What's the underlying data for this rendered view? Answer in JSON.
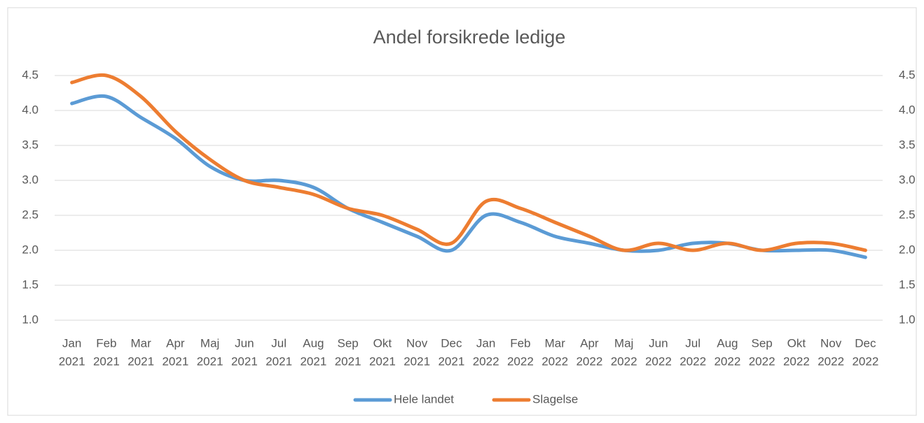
{
  "chart_data": {
    "type": "line",
    "title": "Andel forsikrede ledige",
    "categories": [
      [
        "Jan",
        "2021"
      ],
      [
        "Feb",
        "2021"
      ],
      [
        "Mar",
        "2021"
      ],
      [
        "Apr",
        "2021"
      ],
      [
        "Maj",
        "2021"
      ],
      [
        "Jun",
        "2021"
      ],
      [
        "Jul",
        "2021"
      ],
      [
        "Aug",
        "2021"
      ],
      [
        "Sep",
        "2021"
      ],
      [
        "Okt",
        "2021"
      ],
      [
        "Nov",
        "2021"
      ],
      [
        "Dec",
        "2021"
      ],
      [
        "Jan",
        "2022"
      ],
      [
        "Feb",
        "2022"
      ],
      [
        "Mar",
        "2022"
      ],
      [
        "Apr",
        "2022"
      ],
      [
        "Maj",
        "2022"
      ],
      [
        "Jun",
        "2022"
      ],
      [
        "Jul",
        "2022"
      ],
      [
        "Aug",
        "2022"
      ],
      [
        "Sep",
        "2022"
      ],
      [
        "Okt",
        "2022"
      ],
      [
        "Nov",
        "2022"
      ],
      [
        "Dec",
        "2022"
      ]
    ],
    "series": [
      {
        "name": "Hele landet",
        "color": "#5b9bd5",
        "values": [
          4.1,
          4.2,
          3.9,
          3.6,
          3.2,
          3.0,
          3.0,
          2.9,
          2.6,
          2.4,
          2.2,
          2.0,
          2.5,
          2.4,
          2.2,
          2.1,
          2.0,
          2.0,
          2.1,
          2.1,
          2.0,
          2.0,
          2.0,
          1.9
        ]
      },
      {
        "name": "Slagelse",
        "color": "#ed7d31",
        "values": [
          4.4,
          4.5,
          4.2,
          3.7,
          3.3,
          3.0,
          2.9,
          2.8,
          2.6,
          2.5,
          2.3,
          2.1,
          2.7,
          2.6,
          2.4,
          2.2,
          2.0,
          2.1,
          2.0,
          2.1,
          2.0,
          2.1,
          2.1,
          2.0
        ]
      }
    ],
    "ylim": [
      1.0,
      4.5
    ],
    "yticks": [
      {
        "value": 1.0,
        "label": "1.0"
      },
      1.5,
      {
        "value": 2.0,
        "label": "2.0"
      },
      2.5,
      {
        "value": 3.0,
        "label": "3.0"
      },
      3.5,
      {
        "value": 4.0,
        "label": "4.0"
      },
      4.5
    ],
    "y2lim": [
      1.0,
      4.5
    ],
    "y2ticks": [
      {
        "value": 1.0,
        "label": "1.0"
      },
      1.5,
      {
        "value": 2.0,
        "label": "2.0"
      },
      2.5,
      {
        "value": 3.0,
        "label": "3.0"
      },
      3.5,
      {
        "value": 4.0,
        "label": "4.0"
      },
      4.5
    ],
    "grid": true,
    "legend": "bottom"
  }
}
